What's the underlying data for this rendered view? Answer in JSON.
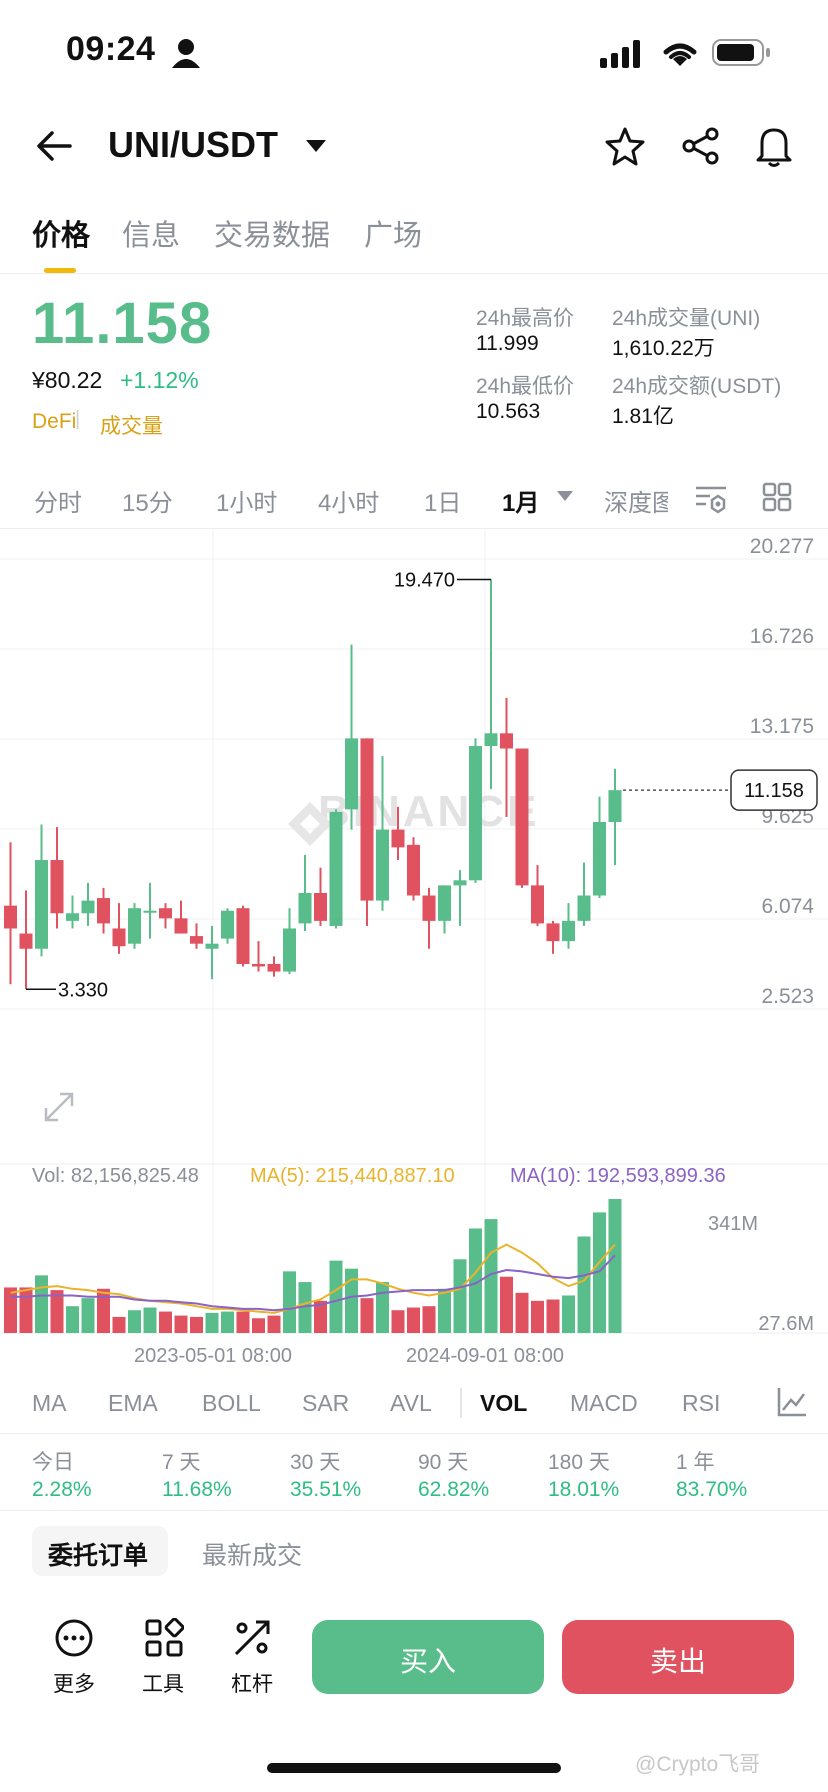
{
  "status_bar": {
    "time": "09:24"
  },
  "header": {
    "pair": "UNI/USDT"
  },
  "tabs": [
    {
      "label": "价格"
    },
    {
      "label": "信息"
    },
    {
      "label": "交易数据"
    },
    {
      "label": "广场"
    }
  ],
  "price": {
    "last": "11.158",
    "cny": "¥80.22",
    "change_pct": "+1.12%",
    "tag_sector": "DeFi",
    "tag_volume": "成交量"
  },
  "stats": {
    "high_label": "24h最高价",
    "high_value": "11.999",
    "low_label": "24h最低价",
    "low_value": "10.563",
    "vol_base_label": "24h成交量(UNI)",
    "vol_base_value": "1,610.22万",
    "vol_quote_label": "24h成交额(USDT)",
    "vol_quote_value": "1.81亿"
  },
  "intervals": [
    "分时",
    "15分",
    "1小时",
    "4小时",
    "1日",
    "1月",
    "深度图"
  ],
  "chart_data": {
    "type": "candlestick",
    "watermark": "BINANCE",
    "price_ticks": [
      "20.277",
      "16.726",
      "13.175",
      "9.625",
      "6.074",
      "2.523"
    ],
    "last_price_label": "11.158",
    "max_label": "19.470",
    "min_label": "3.330",
    "x_ticks": [
      "2023-05-01 08:00",
      "2024-09-01 08:00"
    ],
    "volume_ticks": [
      "341M",
      "27.6M"
    ],
    "volume_legend": {
      "vol": "Vol: 82,156,825.48",
      "ma5": "MA(5): 215,440,887.10",
      "ma10": "MA(10): 192,593,899.36"
    },
    "colors": {
      "up": "#58bd8a",
      "down": "#e0525f",
      "ma5": "#e9b42b",
      "ma10": "#8a63c4"
    },
    "candles": [
      {
        "o": 6.6,
        "h": 9.1,
        "l": 3.5,
        "c": 5.7
      },
      {
        "o": 5.5,
        "h": 7.2,
        "l": 3.3,
        "c": 4.9
      },
      {
        "o": 4.9,
        "h": 9.8,
        "l": 4.6,
        "c": 8.4
      },
      {
        "o": 8.4,
        "h": 9.7,
        "l": 5.7,
        "c": 6.3
      },
      {
        "o": 6.0,
        "h": 7.0,
        "l": 5.7,
        "c": 6.3
      },
      {
        "o": 6.3,
        "h": 7.5,
        "l": 5.8,
        "c": 6.8
      },
      {
        "o": 6.9,
        "h": 7.3,
        "l": 5.5,
        "c": 5.9
      },
      {
        "o": 5.7,
        "h": 6.7,
        "l": 4.7,
        "c": 5.0
      },
      {
        "o": 5.1,
        "h": 6.7,
        "l": 4.9,
        "c": 6.5
      },
      {
        "o": 6.4,
        "h": 7.5,
        "l": 5.3,
        "c": 6.4
      },
      {
        "o": 6.5,
        "h": 6.7,
        "l": 5.7,
        "c": 6.1
      },
      {
        "o": 6.1,
        "h": 6.8,
        "l": 5.5,
        "c": 5.5
      },
      {
        "o": 5.4,
        "h": 5.9,
        "l": 4.9,
        "c": 5.1
      },
      {
        "o": 4.9,
        "h": 5.8,
        "l": 3.7,
        "c": 5.1
      },
      {
        "o": 5.3,
        "h": 6.5,
        "l": 5.1,
        "c": 6.4
      },
      {
        "o": 6.5,
        "h": 6.6,
        "l": 4.2,
        "c": 4.3
      },
      {
        "o": 4.3,
        "h": 5.2,
        "l": 4.0,
        "c": 4.2
      },
      {
        "o": 4.3,
        "h": 4.6,
        "l": 3.8,
        "c": 4.0
      },
      {
        "o": 4.0,
        "h": 6.5,
        "l": 3.9,
        "c": 5.7
      },
      {
        "o": 5.9,
        "h": 8.6,
        "l": 5.6,
        "c": 7.1
      },
      {
        "o": 7.1,
        "h": 8.1,
        "l": 5.8,
        "c": 6.0
      },
      {
        "o": 5.8,
        "h": 10.4,
        "l": 5.7,
        "c": 10.3
      },
      {
        "o": 10.4,
        "h": 16.9,
        "l": 9.6,
        "c": 13.2
      },
      {
        "o": 13.2,
        "h": 13.2,
        "l": 5.8,
        "c": 6.8
      },
      {
        "o": 6.8,
        "h": 12.5,
        "l": 6.4,
        "c": 9.6
      },
      {
        "o": 9.6,
        "h": 10.5,
        "l": 8.4,
        "c": 8.9
      },
      {
        "o": 9.0,
        "h": 9.3,
        "l": 6.8,
        "c": 7.0
      },
      {
        "o": 7.0,
        "h": 7.3,
        "l": 4.9,
        "c": 6.0
      },
      {
        "o": 6.0,
        "h": 7.4,
        "l": 5.5,
        "c": 7.4
      },
      {
        "o": 7.4,
        "h": 8.0,
        "l": 5.8,
        "c": 7.6
      },
      {
        "o": 7.6,
        "h": 13.2,
        "l": 7.5,
        "c": 12.9
      },
      {
        "o": 12.9,
        "h": 19.47,
        "l": 11.2,
        "c": 13.4
      },
      {
        "o": 13.4,
        "h": 14.8,
        "l": 10.1,
        "c": 12.8
      },
      {
        "o": 12.8,
        "h": 12.8,
        "l": 7.3,
        "c": 7.4
      },
      {
        "o": 7.4,
        "h": 8.2,
        "l": 5.8,
        "c": 5.9
      },
      {
        "o": 5.9,
        "h": 6.0,
        "l": 4.7,
        "c": 5.2
      },
      {
        "o": 5.2,
        "h": 6.7,
        "l": 4.9,
        "c": 6.0
      },
      {
        "o": 6.0,
        "h": 8.3,
        "l": 5.8,
        "c": 7.0
      },
      {
        "o": 7.0,
        "h": 10.9,
        "l": 6.9,
        "c": 9.9
      },
      {
        "o": 9.9,
        "h": 11.999,
        "l": 8.2,
        "c": 11.158
      }
    ],
    "volumes": [
      0.34,
      0.34,
      0.43,
      0.32,
      0.2,
      0.26,
      0.33,
      0.12,
      0.17,
      0.19,
      0.16,
      0.13,
      0.12,
      0.15,
      0.16,
      0.16,
      0.11,
      0.13,
      0.46,
      0.38,
      0.24,
      0.54,
      0.48,
      0.26,
      0.38,
      0.17,
      0.19,
      0.2,
      0.33,
      0.55,
      0.78,
      0.85,
      0.42,
      0.3,
      0.24,
      0.25,
      0.28,
      0.72,
      0.9,
      1.0
    ],
    "ma5": [
      0.3,
      0.32,
      0.34,
      0.35,
      0.33,
      0.32,
      0.3,
      0.29,
      0.26,
      0.24,
      0.23,
      0.22,
      0.2,
      0.18,
      0.18,
      0.17,
      0.16,
      0.15,
      0.18,
      0.22,
      0.25,
      0.32,
      0.4,
      0.4,
      0.37,
      0.33,
      0.3,
      0.28,
      0.3,
      0.33,
      0.45,
      0.6,
      0.66,
      0.6,
      0.52,
      0.41,
      0.35,
      0.39,
      0.53,
      0.66
    ],
    "ma10": [
      0.27,
      0.27,
      0.28,
      0.28,
      0.28,
      0.27,
      0.27,
      0.27,
      0.25,
      0.24,
      0.24,
      0.23,
      0.22,
      0.2,
      0.19,
      0.18,
      0.18,
      0.17,
      0.18,
      0.2,
      0.21,
      0.24,
      0.27,
      0.28,
      0.3,
      0.31,
      0.32,
      0.32,
      0.32,
      0.34,
      0.37,
      0.44,
      0.47,
      0.46,
      0.44,
      0.42,
      0.41,
      0.43,
      0.46,
      0.58
    ]
  },
  "indicators": [
    "MA",
    "EMA",
    "BOLL",
    "SAR",
    "AVL",
    "VOL",
    "MACD",
    "RSI"
  ],
  "performance": [
    {
      "label": "今日",
      "value": "2.28%"
    },
    {
      "label": "7 天",
      "value": "11.68%"
    },
    {
      "label": "30 天",
      "value": "35.51%"
    },
    {
      "label": "90 天",
      "value": "62.82%"
    },
    {
      "label": "180 天",
      "value": "18.01%"
    },
    {
      "label": "1 年",
      "value": "83.70%"
    }
  ],
  "orders_tabs": {
    "orders": "委托订单",
    "trades": "最新成交"
  },
  "bottom": {
    "more": "更多",
    "tools": "工具",
    "leverage": "杠杆",
    "buy": "买入",
    "sell": "卖出"
  },
  "watermark_text": "@Crypto飞哥"
}
